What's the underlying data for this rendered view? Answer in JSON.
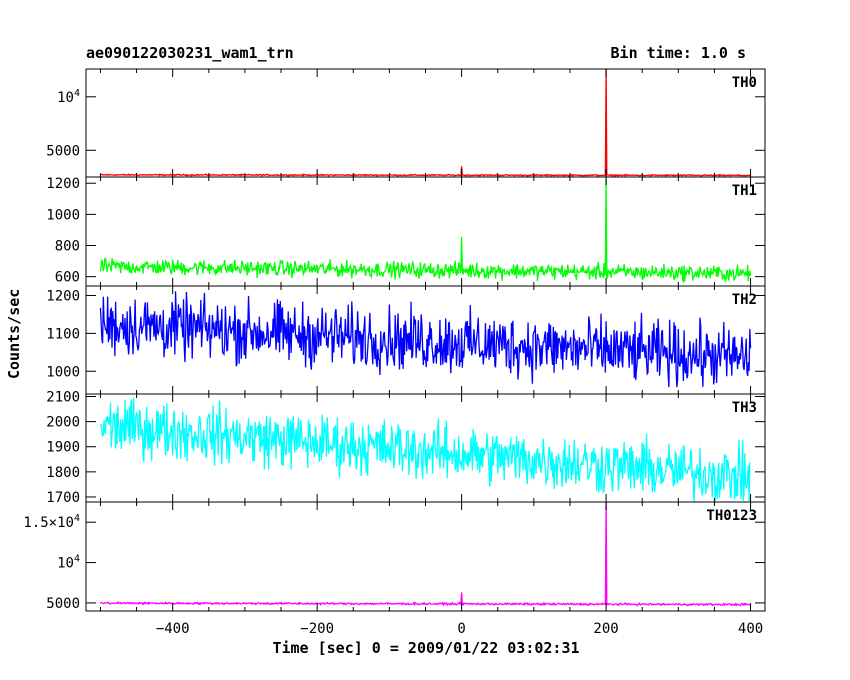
{
  "header": {
    "left_title": "ae090122030231_wam1_trn",
    "right_title": "Bin time: 1.0 s"
  },
  "chart_data": {
    "type": "line",
    "xlabel": "Time [sec] 0 = 2009/01/22 03:02:31",
    "ylabel": "Counts/sec",
    "xlim": [
      -520,
      420
    ],
    "xticks": [
      -400,
      -200,
      0,
      200,
      400
    ],
    "x_data_range": [
      -500,
      400
    ],
    "grid": false,
    "panels": [
      {
        "name": "TH0",
        "color": "#ff0000",
        "ylim": [
          2500,
          12600
        ],
        "yticks": [
          {
            "v": 5000,
            "label": "5000"
          },
          {
            "v": 10000,
            "label": "10^4"
          }
        ],
        "baseline_start": 2700,
        "baseline_end": 2650,
        "noise": 30,
        "spikes": [
          {
            "x": 0,
            "y": 3500
          },
          {
            "x": 200,
            "y": 12600
          }
        ]
      },
      {
        "name": "TH1",
        "color": "#00ff00",
        "ylim": [
          540,
          1240
        ],
        "yticks": [
          {
            "v": 600,
            "label": "600"
          },
          {
            "v": 800,
            "label": "800"
          },
          {
            "v": 1000,
            "label": "1000"
          },
          {
            "v": 1200,
            "label": "1200"
          }
        ],
        "baseline_start": 665,
        "baseline_end": 620,
        "noise": 25,
        "spikes": [
          {
            "x": 0,
            "y": 855
          },
          {
            "x": 200,
            "y": 1240
          }
        ]
      },
      {
        "name": "TH2",
        "color": "#0000ff",
        "ylim": [
          940,
          1225
        ],
        "yticks": [
          {
            "v": 1000,
            "label": "1000"
          },
          {
            "v": 1100,
            "label": "1100"
          },
          {
            "v": 1200,
            "label": "1200"
          }
        ],
        "baseline_start": 1125,
        "baseline_end": 1035,
        "noise": 40,
        "spikes": []
      },
      {
        "name": "TH3",
        "color": "#00ffff",
        "ylim": [
          1680,
          2110
        ],
        "yticks": [
          {
            "v": 1700,
            "label": "1700"
          },
          {
            "v": 1800,
            "label": "1800"
          },
          {
            "v": 1900,
            "label": "1900"
          },
          {
            "v": 2000,
            "label": "2000"
          },
          {
            "v": 2100,
            "label": "2100"
          }
        ],
        "baseline_start": 1985,
        "baseline_end": 1780,
        "noise": 55,
        "spikes": []
      },
      {
        "name": "TH0123",
        "color": "#ff00ff",
        "ylim": [
          4000,
          17500
        ],
        "yticks": [
          {
            "v": 5000,
            "label": "5000"
          },
          {
            "v": 10000,
            "label": "10^4"
          },
          {
            "v": 15000,
            "label": "1.5×10^4"
          }
        ],
        "baseline_start": 4980,
        "baseline_end": 4800,
        "noise": 60,
        "spikes": [
          {
            "x": 0,
            "y": 6300
          },
          {
            "x": 200,
            "y": 17500
          }
        ]
      }
    ]
  }
}
